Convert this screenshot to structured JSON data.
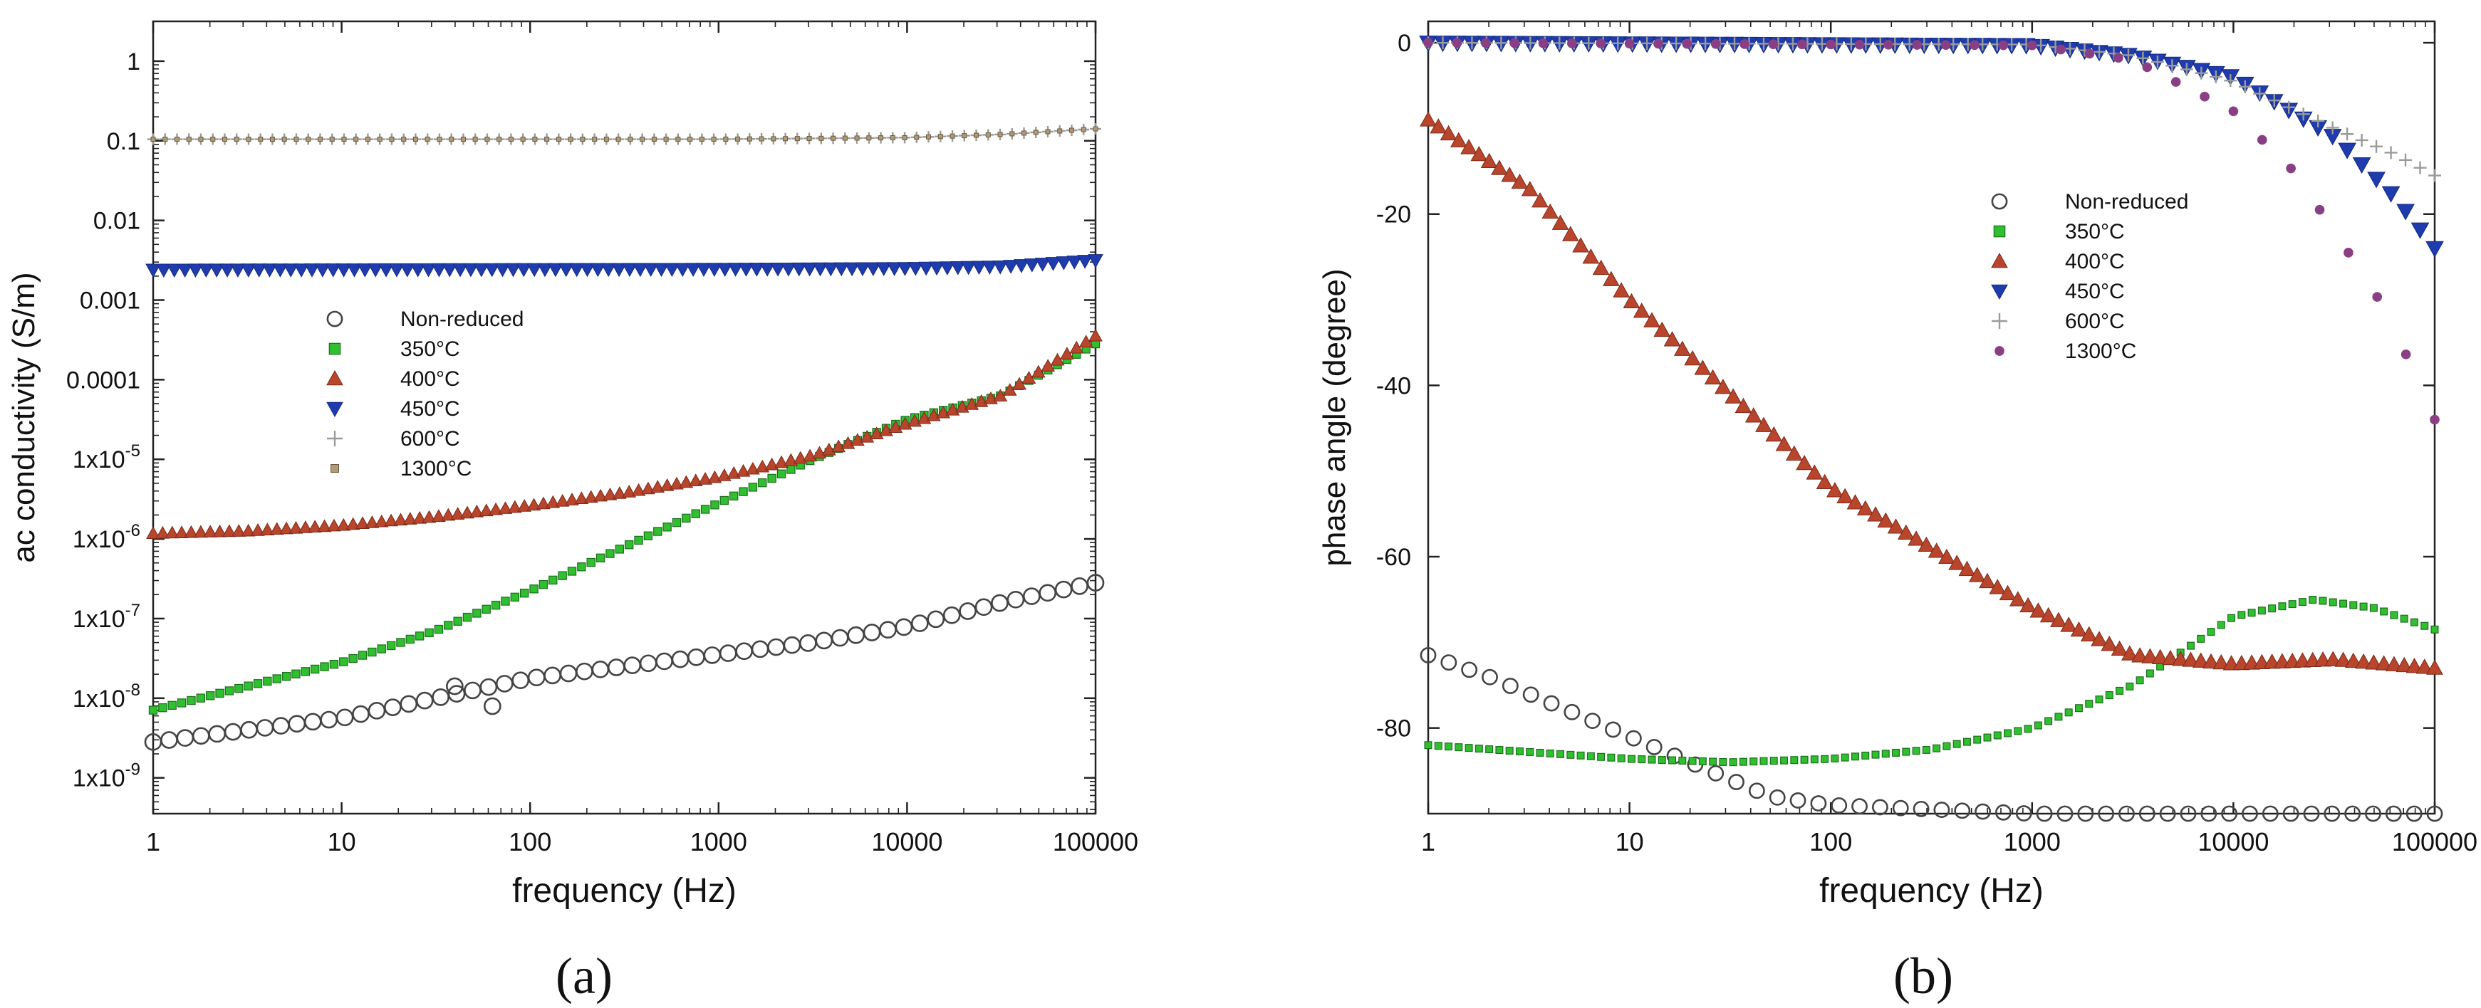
{
  "figure": {
    "panel_a_label": "(a)",
    "panel_b_label": "(b)"
  },
  "colors": {
    "non_reduced": "#444444",
    "c350": "#2fbf2f",
    "c400": "#b8452c",
    "c450": "#1f3cae",
    "c600": "#9a9a9a",
    "c1300": "#8a3f84",
    "c1300_a": "#b09a78"
  },
  "chart_data": [
    {
      "id": "a",
      "type": "scatter",
      "title": "",
      "xlabel": "frequency (Hz)",
      "ylabel": "ac conductivity (S/m)",
      "xscale": "log",
      "yscale": "log",
      "xlim": [
        1,
        100000
      ],
      "ylim_log10": [
        -9.45,
        0.5
      ],
      "x_ticks": [
        1,
        10,
        100,
        1000,
        10000,
        100000
      ],
      "x_tick_labels": [
        "1",
        "10",
        "100",
        "1000",
        "10000",
        "100000"
      ],
      "y_ticks_log10": [
        0,
        -1,
        -2,
        -3,
        -4,
        -5,
        -6,
        -7,
        -8,
        -9
      ],
      "y_tick_labels": [
        {
          "base": "1",
          "exp": ""
        },
        {
          "base": "0.1",
          "exp": ""
        },
        {
          "base": "0.01",
          "exp": ""
        },
        {
          "base": "0.001",
          "exp": ""
        },
        {
          "base": "0.0001",
          "exp": ""
        },
        {
          "base": "1x10",
          "exp": "-5"
        },
        {
          "base": "1x10",
          "exp": "-6"
        },
        {
          "base": "1x10",
          "exp": "-7"
        },
        {
          "base": "1x10",
          "exp": "-8"
        },
        {
          "base": "1x10",
          "exp": "-9"
        }
      ],
      "grid": false,
      "legend_position": "center-left",
      "series": [
        {
          "name": "Non-reduced",
          "marker": "circle-open",
          "color_key": "non_reduced",
          "n": 60,
          "curve": [
            [
              0,
              -8.55
            ],
            [
              0.5,
              -8.4
            ],
            [
              1.0,
              -8.25
            ],
            [
              1.5,
              -8.0
            ],
            [
              2.0,
              -7.75
            ],
            [
              2.5,
              -7.6
            ],
            [
              3.0,
              -7.45
            ],
            [
              3.5,
              -7.3
            ],
            [
              4.0,
              -7.1
            ],
            [
              4.5,
              -6.8
            ],
            [
              5.0,
              -6.55
            ]
          ],
          "outliers": [
            [
              1.6,
              -7.85
            ],
            [
              1.8,
              -8.1
            ]
          ]
        },
        {
          "name": "350°C",
          "marker": "square",
          "color_key": "c350",
          "n": 100,
          "curve": [
            [
              0,
              -8.15
            ],
            [
              0.5,
              -7.85
            ],
            [
              1.0,
              -7.55
            ],
            [
              1.5,
              -7.15
            ],
            [
              2.0,
              -6.65
            ],
            [
              2.5,
              -6.1
            ],
            [
              3.0,
              -5.55
            ],
            [
              3.5,
              -5.0
            ],
            [
              4.0,
              -4.5
            ],
            [
              4.5,
              -4.2
            ],
            [
              5.0,
              -3.55
            ]
          ]
        },
        {
          "name": "400°C",
          "marker": "triangle-up",
          "color_key": "c400",
          "n": 100,
          "curve": [
            [
              0,
              -5.93
            ],
            [
              0.5,
              -5.9
            ],
            [
              1.0,
              -5.83
            ],
            [
              1.5,
              -5.72
            ],
            [
              2.0,
              -5.58
            ],
            [
              2.5,
              -5.42
            ],
            [
              3.0,
              -5.22
            ],
            [
              3.5,
              -4.95
            ],
            [
              4.0,
              -4.55
            ],
            [
              4.5,
              -4.2
            ],
            [
              5.0,
              -3.45
            ]
          ]
        },
        {
          "name": "450°C",
          "marker": "triangle-down",
          "color_key": "c450",
          "n": 90,
          "curve": [
            [
              0,
              -2.62
            ],
            [
              3.0,
              -2.61
            ],
            [
              4.0,
              -2.6
            ],
            [
              4.5,
              -2.58
            ],
            [
              5.0,
              -2.5
            ]
          ]
        },
        {
          "name": "600°C",
          "marker": "plus",
          "color_key": "c600",
          "n": 80,
          "curve": [
            [
              0,
              -0.98
            ],
            [
              3.0,
              -0.98
            ],
            [
              4.0,
              -0.96
            ],
            [
              4.5,
              -0.92
            ],
            [
              5.0,
              -0.85
            ]
          ]
        },
        {
          "name": "1300°C",
          "marker": "square-small",
          "color_key": "c1300_a",
          "n": 80,
          "curve": [
            [
              0,
              -0.98
            ],
            [
              3.0,
              -0.98
            ],
            [
              4.0,
              -0.96
            ],
            [
              4.5,
              -0.92
            ],
            [
              5.0,
              -0.85
            ]
          ]
        }
      ]
    },
    {
      "id": "b",
      "type": "scatter",
      "title": "",
      "xlabel": "frequency (Hz)",
      "ylabel": "phase angle (degree)",
      "xscale": "log",
      "yscale": "linear",
      "xlim": [
        1,
        100000
      ],
      "ylim": [
        -90,
        2.5
      ],
      "x_ticks": [
        1,
        10,
        100,
        1000,
        10000,
        100000
      ],
      "x_tick_labels": [
        "1",
        "10",
        "100",
        "1000",
        "10000",
        "100000"
      ],
      "y_ticks": [
        0,
        -20,
        -40,
        -60,
        -80
      ],
      "y_tick_labels": [
        "0",
        "-20",
        "-40",
        "-60",
        "-80"
      ],
      "grid": false,
      "legend_position": "upper-right-center",
      "series": [
        {
          "name": "Non-reduced",
          "marker": "circle-open",
          "color_key": "non_reduced",
          "n": 50,
          "curve": [
            [
              0,
              -71.5
            ],
            [
              0.3,
              -74
            ],
            [
              0.6,
              -77
            ],
            [
              0.9,
              -80
            ],
            [
              1.2,
              -83
            ],
            [
              1.5,
              -86
            ],
            [
              1.7,
              -88
            ],
            [
              2.0,
              -89
            ],
            [
              2.5,
              -89.5
            ],
            [
              3.0,
              -90
            ],
            [
              5.0,
              -90
            ]
          ]
        },
        {
          "name": "350°C",
          "marker": "square",
          "color_key": "c350",
          "n": 100,
          "curve": [
            [
              0,
              -82
            ],
            [
              0.5,
              -82.8
            ],
            [
              1.0,
              -83.6
            ],
            [
              1.5,
              -84
            ],
            [
              2.0,
              -83.6
            ],
            [
              2.5,
              -82.5
            ],
            [
              3.0,
              -80
            ],
            [
              3.5,
              -75
            ],
            [
              4.0,
              -67
            ],
            [
              4.4,
              -65
            ],
            [
              4.7,
              -66
            ],
            [
              5.0,
              -68.5
            ]
          ]
        },
        {
          "name": "400°C",
          "marker": "triangle-up",
          "color_key": "c400",
          "n": 100,
          "curve": [
            [
              0,
              -9
            ],
            [
              0.5,
              -17
            ],
            [
              1.0,
              -30
            ],
            [
              1.5,
              -41
            ],
            [
              2.0,
              -52
            ],
            [
              2.5,
              -59
            ],
            [
              3.0,
              -66
            ],
            [
              3.5,
              -71.5
            ],
            [
              4.0,
              -72.5
            ],
            [
              4.5,
              -72
            ],
            [
              5.0,
              -73
            ]
          ]
        },
        {
          "name": "450°C",
          "marker": "triangle-down",
          "color_key": "c450",
          "n": 70,
          "curve": [
            [
              0,
              0
            ],
            [
              3.0,
              -0.3
            ],
            [
              3.5,
              -1.5
            ],
            [
              4.0,
              -4
            ],
            [
              4.5,
              -11
            ],
            [
              4.8,
              -18
            ],
            [
              5.0,
              -24
            ]
          ]
        },
        {
          "name": "600°C",
          "marker": "plus",
          "color_key": "c600",
          "n": 70,
          "curve": [
            [
              0,
              0
            ],
            [
              3.0,
              -0.2
            ],
            [
              3.5,
              -1.5
            ],
            [
              4.0,
              -4.5
            ],
            [
              4.5,
              -10
            ],
            [
              4.8,
              -13
            ],
            [
              5.0,
              -15.5
            ]
          ]
        },
        {
          "name": "1300°C",
          "marker": "circle-filled",
          "color_key": "c1300",
          "n": 36,
          "curve": [
            [
              0,
              0
            ],
            [
              3.0,
              -0.3
            ],
            [
              3.5,
              -2
            ],
            [
              4.0,
              -8
            ],
            [
              4.3,
              -15
            ],
            [
              4.5,
              -22
            ],
            [
              4.7,
              -29
            ],
            [
              4.85,
              -36
            ],
            [
              5.0,
              -44
            ]
          ]
        }
      ]
    }
  ]
}
